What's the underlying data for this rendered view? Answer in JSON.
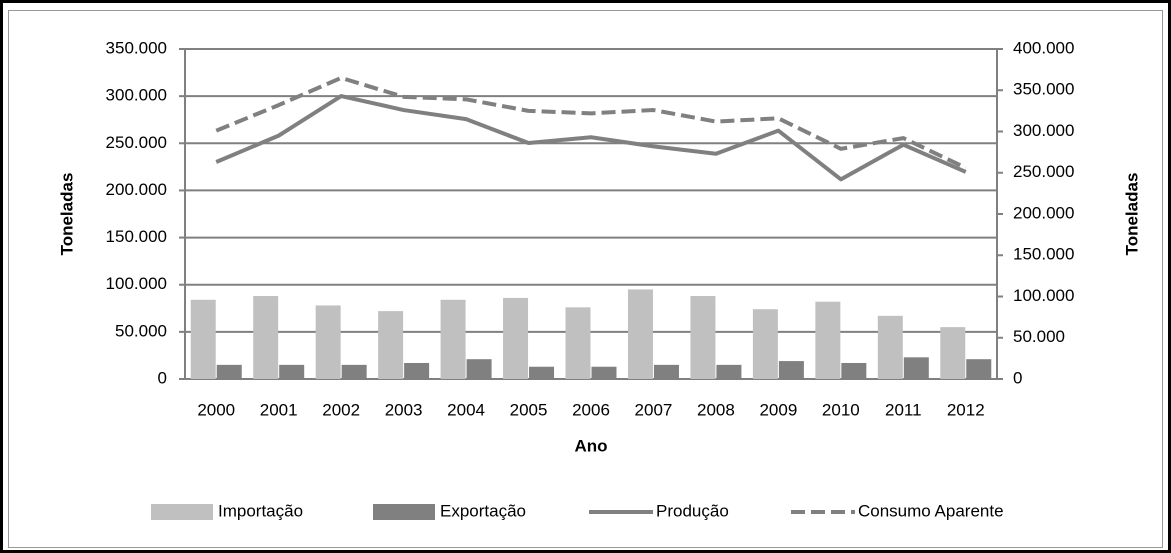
{
  "chart_data": {
    "type": "bar-line",
    "xlabel": "Ano",
    "ylabel": "Toneladas",
    "y2label": "Toneladas",
    "categories": [
      "2000",
      "2001",
      "2002",
      "2003",
      "2004",
      "2005",
      "2006",
      "2007",
      "2008",
      "2009",
      "2010",
      "2011",
      "2012"
    ],
    "series": [
      {
        "name": "Importação",
        "type": "bar",
        "color": "#c0c0c0",
        "values": [
          84000,
          88000,
          78000,
          72000,
          84000,
          86000,
          76000,
          95000,
          88000,
          74000,
          82000,
          67000,
          55000
        ]
      },
      {
        "name": "Exportação",
        "type": "bar",
        "color": "#808080",
        "values": [
          15000,
          15000,
          15000,
          17000,
          21000,
          13000,
          13000,
          15000,
          15000,
          19000,
          17000,
          23000,
          21000
        ]
      },
      {
        "name": "Produção",
        "type": "line",
        "axis": "y2",
        "color": "#808080",
        "values": [
          263000,
          295000,
          343000,
          326000,
          315000,
          286000,
          293000,
          282000,
          273000,
          301000,
          242000,
          284000,
          251000
        ]
      },
      {
        "name": "Consumo Aparente",
        "type": "line",
        "dashed": true,
        "axis": "y2",
        "color": "#808080",
        "values": [
          301000,
          332000,
          365000,
          342000,
          339000,
          325000,
          322000,
          326000,
          312000,
          316000,
          279000,
          292000,
          256000
        ]
      }
    ],
    "ylim": [
      0,
      350000
    ],
    "yticks": [
      0,
      {
        "value": 50000,
        "label": "50.000"
      },
      {
        "value": 100000,
        "label": "100.000"
      },
      {
        "value": 150000,
        "label": "150.000"
      },
      {
        "value": 200000,
        "label": "200.000"
      },
      {
        "value": 250000,
        "label": "250.000"
      },
      {
        "value": 300000,
        "label": "300.000"
      },
      {
        "value": 350000,
        "label": "350.000"
      }
    ],
    "y2lim": [
      0,
      400000
    ],
    "y2ticks": [
      0,
      {
        "value": 50000,
        "label": "50.000"
      },
      {
        "value": 100000,
        "label": "100.000"
      },
      {
        "value": 150000,
        "label": "150.000"
      },
      {
        "value": 200000,
        "label": "200.000"
      },
      {
        "value": 250000,
        "label": "250.000"
      },
      {
        "value": 300000,
        "label": "300.000"
      },
      {
        "value": 350000,
        "label": "350.000"
      },
      {
        "value": 400000,
        "label": "400.000"
      }
    ],
    "grid": true,
    "legend": "bottom"
  }
}
